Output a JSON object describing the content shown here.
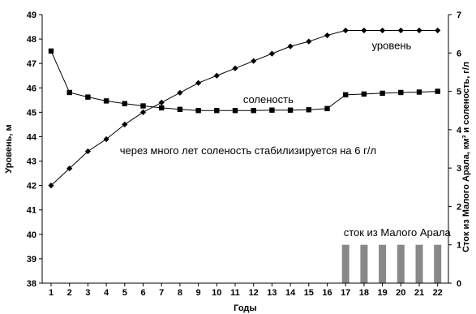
{
  "chart_data": {
    "type": "line",
    "x": [
      1,
      2,
      3,
      4,
      5,
      6,
      7,
      8,
      9,
      10,
      11,
      12,
      13,
      14,
      15,
      16,
      17,
      18,
      19,
      20,
      21,
      22
    ],
    "xlabel": "Годы",
    "ylabel_left": "Уровень, м",
    "ylabel_right": "Сток из Малого Арала, км³ и соленость, г/л",
    "ylim_left": [
      38,
      49
    ],
    "yticks_left": [
      38,
      39,
      40,
      41,
      42,
      43,
      44,
      45,
      46,
      47,
      48,
      49
    ],
    "ylim_right": [
      0,
      7
    ],
    "yticks_right": [
      0,
      1,
      2,
      3,
      4,
      5,
      6,
      7
    ],
    "grid": false,
    "series": [
      {
        "name": "уровень",
        "axis": "left",
        "type": "line",
        "marker": "diamond",
        "color": "#000000",
        "values": [
          42.0,
          42.7,
          43.4,
          43.9,
          44.5,
          45.0,
          45.4,
          45.8,
          46.2,
          46.5,
          46.8,
          47.1,
          47.4,
          47.7,
          47.9,
          48.15,
          48.35,
          48.35,
          48.35,
          48.35,
          48.35,
          48.35
        ]
      },
      {
        "name": "соленость",
        "axis": "right",
        "type": "line",
        "marker": "square",
        "color": "#000000",
        "values": [
          6.05,
          4.97,
          4.85,
          4.75,
          4.68,
          4.62,
          4.57,
          4.53,
          4.5,
          4.5,
          4.5,
          4.5,
          4.51,
          4.51,
          4.52,
          4.55,
          4.91,
          4.93,
          4.95,
          4.97,
          4.98,
          5.0
        ]
      },
      {
        "name": "сток из Малого Арала",
        "axis": "right",
        "type": "bar",
        "color": "#888888",
        "x": [
          17,
          18,
          19,
          20,
          21,
          22
        ],
        "values": [
          1,
          1,
          1,
          1,
          1,
          1
        ]
      }
    ],
    "annotations": [
      {
        "text": "уровень",
        "x": 19.5,
        "axis": "left",
        "y": 47.75
      },
      {
        "text": "соленость",
        "x": 12.8,
        "axis": "left",
        "y": 45.55
      },
      {
        "text": "через много лет соленость стабилизируется на 6 г/л",
        "x": 11.7,
        "axis": "left",
        "y": 43.45
      },
      {
        "text": "сток из Малого Арала",
        "x": 19.8,
        "axis": "left",
        "y": 40.1
      }
    ]
  }
}
